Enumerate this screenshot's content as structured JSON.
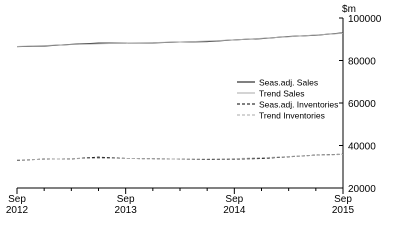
{
  "chart_data": {
    "type": "line",
    "unit_label": "$m",
    "categories": [
      "Sep 2012",
      null,
      null,
      null,
      "Sep 2013",
      null,
      null,
      null,
      "Sep 2014",
      null,
      null,
      null,
      "Sep 2015"
    ],
    "series": [
      {
        "name": "Seas.adj. Sales",
        "color": "#000000",
        "dash": "solid",
        "values": [
          86500,
          86800,
          87600,
          88200,
          88200,
          88300,
          88700,
          88900,
          89700,
          90300,
          91300,
          91900,
          93000
        ]
      },
      {
        "name": "Trend Sales",
        "color": "#aaaaaa",
        "dash": "solid",
        "values": [
          86600,
          87000,
          87500,
          87900,
          88200,
          88400,
          88700,
          89100,
          89700,
          90400,
          91200,
          92000,
          92800
        ]
      },
      {
        "name": "Seas.adj. Inventories",
        "color": "#000000",
        "dash": "dashed",
        "values": [
          33000,
          33600,
          33700,
          34500,
          33900,
          33800,
          33600,
          33400,
          33600,
          33900,
          34700,
          35500,
          35900
        ]
      },
      {
        "name": "Trend Inventories",
        "color": "#aaaaaa",
        "dash": "dashed",
        "values": [
          33200,
          33500,
          33800,
          34000,
          33900,
          33800,
          33600,
          33600,
          33800,
          34200,
          34800,
          35400,
          35800
        ]
      }
    ],
    "ylim": [
      20000,
      100000
    ],
    "yticks": [
      20000,
      40000,
      60000,
      80000,
      100000
    ],
    "y_axis_side": "right",
    "legend": "right"
  }
}
